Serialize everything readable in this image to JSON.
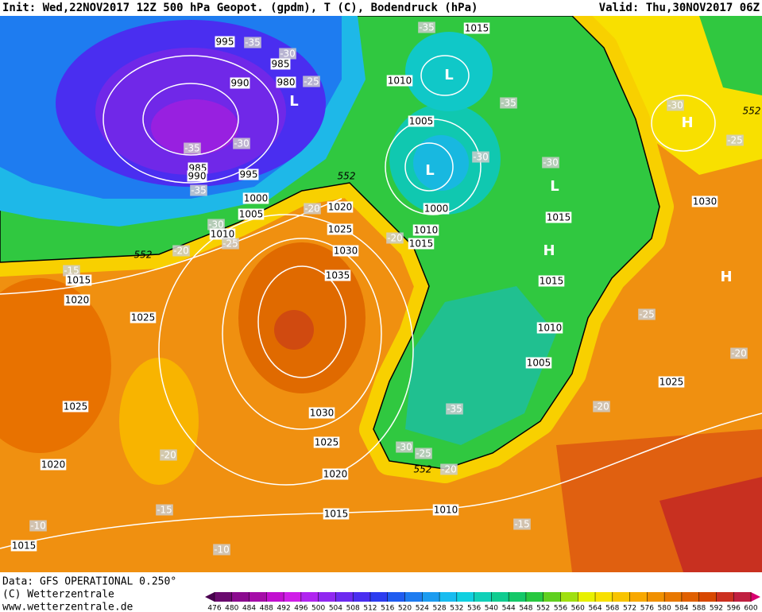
{
  "header": {
    "init": "Init: Wed,22NOV2017 12Z 500 hPa Geopot. (gpdm), T (C), Bodendruck (hPa)",
    "valid": "Valid: Thu,30NOV2017 06Z"
  },
  "footer": {
    "source": "Data: GFS OPERATIONAL 0.250°",
    "copyright": "(C) Wetterzentrale",
    "url": "www.wetterzentrale.de"
  },
  "colorbar": {
    "ticks": [
      476,
      480,
      484,
      488,
      492,
      496,
      500,
      504,
      508,
      512,
      516,
      520,
      524,
      528,
      532,
      536,
      540,
      544,
      548,
      552,
      556,
      560,
      564,
      568,
      572,
      576,
      580,
      584,
      588,
      592,
      596,
      600
    ],
    "colors": [
      "#6a0a6e",
      "#8b0b8f",
      "#a50ca8",
      "#c20fd0",
      "#d01ee8",
      "#b024f0",
      "#9028f0",
      "#6c2af0",
      "#4a2ef0",
      "#2c3cf0",
      "#1f5cf0",
      "#1e7cf0",
      "#1c9cf0",
      "#18bcf0",
      "#10d0e0",
      "#10d0b8",
      "#10cc90",
      "#14c868",
      "#28c840",
      "#60d020",
      "#a0e010",
      "#e8f000",
      "#f8e000",
      "#f8c400",
      "#f8a800",
      "#f09000",
      "#e87800",
      "#e06000",
      "#d84800",
      "#cc3020",
      "#c02040"
    ],
    "low_color": "#4a0050",
    "high_color": "#d80070"
  },
  "map": {
    "labels": [
      995,
      -35,
      -30,
      985,
      990,
      980,
      -25,
      "L",
      -35,
      -30,
      985,
      990,
      -35,
      995,
      1000,
      1005,
      -30,
      1010,
      -25,
      552,
      -20,
      -15,
      1015,
      1020,
      1025,
      552,
      1020,
      -20,
      1025,
      1030,
      1035,
      -20,
      1010,
      1015,
      1015,
      -35,
      1010,
      "L",
      -35,
      1005,
      "L",
      -30,
      -30,
      1000,
      "L",
      1015,
      "H",
      1015,
      1010,
      1005,
      -30,
      "H",
      552,
      -25,
      1030,
      "H",
      -25,
      -20,
      1025,
      -20,
      -35,
      -30,
      -25,
      552,
      -20,
      1025,
      1030,
      1025,
      -20,
      1020,
      1020,
      -15,
      1015,
      1010,
      -15,
      -10,
      1015,
      -10
    ]
  }
}
